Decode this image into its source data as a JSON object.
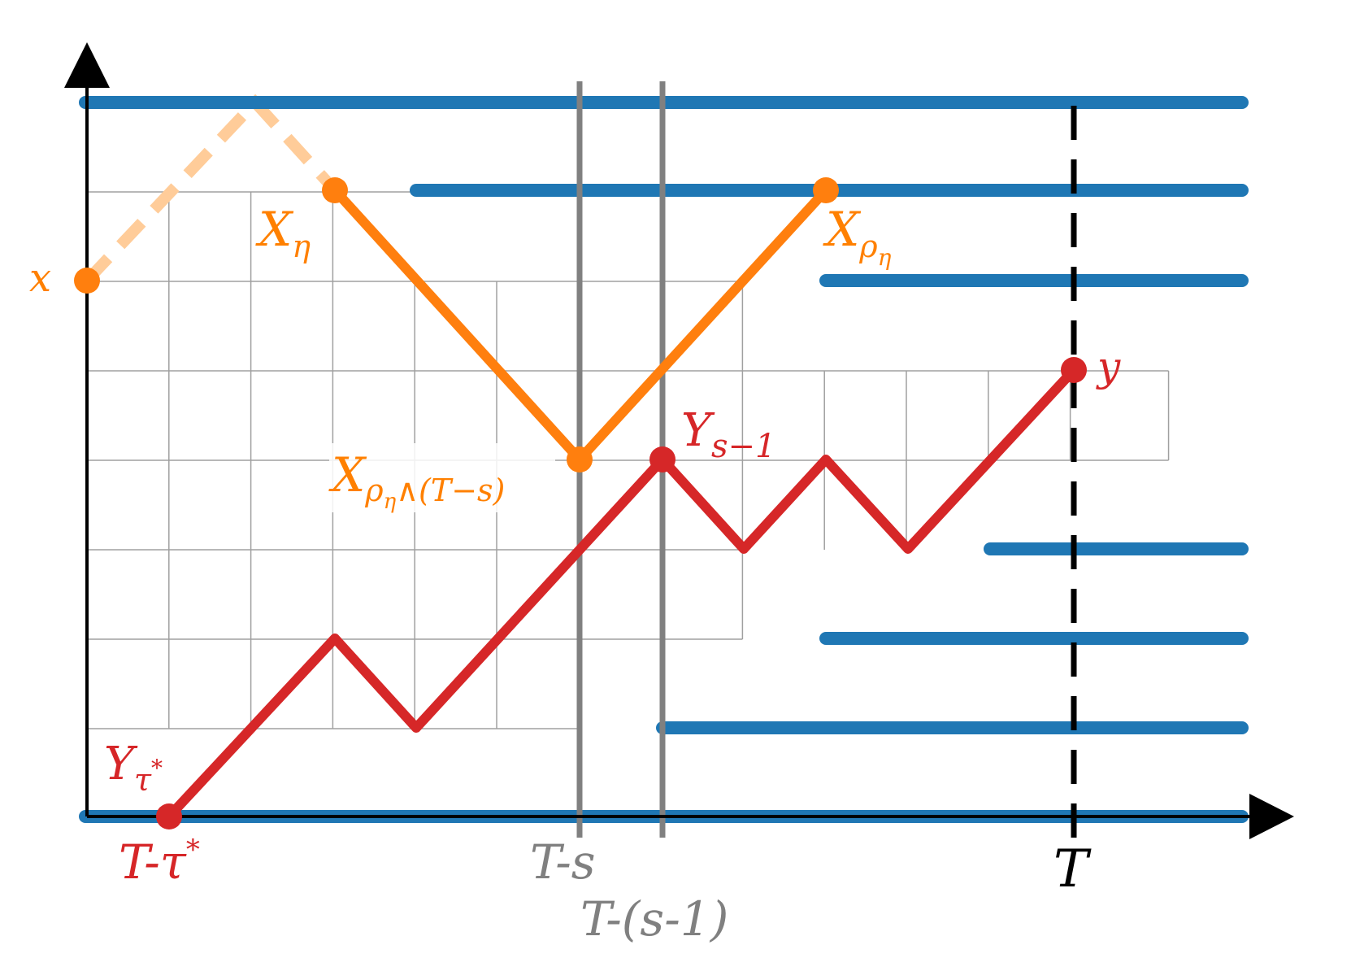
{
  "colors": {
    "blue": "#1f77b4",
    "orange": "#ff7f0e",
    "orange_faded": "#ffcc99",
    "red": "#d62728",
    "gray": "#808080",
    "black": "#000000"
  },
  "labels": {
    "x": "x",
    "X_eta": {
      "main": "X",
      "sub": "η"
    },
    "X_rho_eta": {
      "main": "X",
      "sub": "ρ",
      "subsub": "η"
    },
    "X_rho_eta_min": {
      "main": "X",
      "sub": "ρ",
      "subsub": "η",
      "rest": "∧(T−s)"
    },
    "y": "y",
    "Y_s_minus_1": {
      "main": "Y",
      "sub": "s−1"
    },
    "Y_tau_star": {
      "main": "Y",
      "sub": "τ",
      "sup": "*"
    },
    "tick_T_tau_star": {
      "main": "T-τ",
      "sup": "*"
    },
    "tick_T_s": "T-s",
    "tick_T_s_minus_1": "T-(s-1)",
    "tick_T": "T"
  }
}
